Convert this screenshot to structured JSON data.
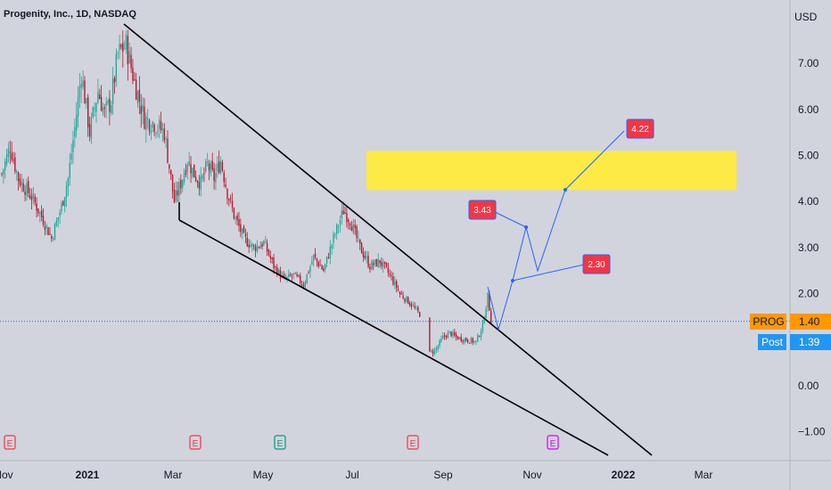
{
  "header": {
    "title": "Progenity, Inc., 1D, NASDAQ",
    "currency": "USD"
  },
  "colors": {
    "background": "#d1d4dc",
    "candle_up": "#26a69a",
    "candle_down": "#b5192e",
    "trendline": "#000000",
    "projection": "#2962ff",
    "zone": "#ffeb3b",
    "label_red": "#f23645",
    "prog_tag": "#ff9800",
    "post_tag": "#2196f3",
    "earnings_red": "#f23645",
    "earnings_green": "#089981",
    "earnings_purple": "#d500f9"
  },
  "price_axis": {
    "ticks": [
      "7.00",
      "6.00",
      "5.00",
      "4.00",
      "3.00",
      "2.00",
      "1.00",
      "0.00",
      "−1.00"
    ]
  },
  "time_axis": {
    "labels": [
      {
        "text": "Nov",
        "bold": false
      },
      {
        "text": "2021",
        "bold": true
      },
      {
        "text": "Mar",
        "bold": false
      },
      {
        "text": "May",
        "bold": false
      },
      {
        "text": "Jul",
        "bold": false
      },
      {
        "text": "Sep",
        "bold": false
      },
      {
        "text": "Nov",
        "bold": false
      },
      {
        "text": "2022",
        "bold": true
      },
      {
        "text": "Mar",
        "bold": false
      }
    ]
  },
  "price_tags": [
    {
      "symbol": "PROG",
      "value": "1.40",
      "color": "#ff9800"
    },
    {
      "symbol": "Post",
      "value": "1.39",
      "color": "#2196f3"
    }
  ],
  "chart_data": {
    "type": "candlestick",
    "title": "Progenity, Inc., 1D, NASDAQ",
    "ylim": [
      -1.5,
      8.3
    ],
    "last_price": 1.4,
    "post_price": 1.39,
    "zone": {
      "low": 4.25,
      "high": 5.1
    },
    "projection_labels": [
      "3.43",
      "2.30",
      "4.22"
    ],
    "earnings_markers": [
      "E",
      "E",
      "E",
      "E",
      "E"
    ],
    "ohlc_path": [
      {
        "i": 0,
        "p": 4.6
      },
      {
        "i": 5,
        "p": 5.2
      },
      {
        "i": 10,
        "p": 4.5
      },
      {
        "i": 18,
        "p": 4.1
      },
      {
        "i": 25,
        "p": 3.6
      },
      {
        "i": 30,
        "p": 3.2
      },
      {
        "i": 36,
        "p": 3.9
      },
      {
        "i": 40,
        "p": 4.5
      },
      {
        "i": 44,
        "p": 5.6
      },
      {
        "i": 48,
        "p": 6.8
      },
      {
        "i": 53,
        "p": 5.5
      },
      {
        "i": 58,
        "p": 6.4
      },
      {
        "i": 62,
        "p": 5.9
      },
      {
        "i": 66,
        "p": 6.2
      },
      {
        "i": 70,
        "p": 7.2
      },
      {
        "i": 75,
        "p": 7.4
      },
      {
        "i": 80,
        "p": 6.6
      },
      {
        "i": 86,
        "p": 5.8
      },
      {
        "i": 92,
        "p": 5.7
      },
      {
        "i": 98,
        "p": 5.5
      },
      {
        "i": 104,
        "p": 4.0
      },
      {
        "i": 108,
        "p": 4.4
      },
      {
        "i": 112,
        "p": 4.9
      },
      {
        "i": 116,
        "p": 4.6
      },
      {
        "i": 120,
        "p": 4.4
      },
      {
        "i": 124,
        "p": 4.8
      },
      {
        "i": 128,
        "p": 4.5
      },
      {
        "i": 132,
        "p": 4.9
      },
      {
        "i": 136,
        "p": 4.2
      },
      {
        "i": 140,
        "p": 3.7
      },
      {
        "i": 146,
        "p": 3.2
      },
      {
        "i": 152,
        "p": 3.0
      },
      {
        "i": 158,
        "p": 3.1
      },
      {
        "i": 164,
        "p": 2.6
      },
      {
        "i": 170,
        "p": 2.3
      },
      {
        "i": 176,
        "p": 2.4
      },
      {
        "i": 182,
        "p": 2.2
      },
      {
        "i": 188,
        "p": 2.8
      },
      {
        "i": 194,
        "p": 2.5
      },
      {
        "i": 200,
        "p": 3.2
      },
      {
        "i": 206,
        "p": 3.8
      },
      {
        "i": 210,
        "p": 3.6
      },
      {
        "i": 216,
        "p": 3.0
      },
      {
        "i": 222,
        "p": 2.6
      },
      {
        "i": 228,
        "p": 2.7
      },
      {
        "i": 234,
        "p": 2.4
      },
      {
        "i": 240,
        "p": 2.0
      },
      {
        "i": 246,
        "p": 1.8
      },
      {
        "i": 252,
        "p": 1.55
      },
      {
        "i": 258,
        "p": 0.7
      },
      {
        "i": 262,
        "p": 0.8
      },
      {
        "i": 266,
        "p": 1.05
      },
      {
        "i": 270,
        "p": 1.15
      },
      {
        "i": 274,
        "p": 1.05
      },
      {
        "i": 280,
        "p": 1.0
      },
      {
        "i": 286,
        "p": 0.95
      },
      {
        "i": 290,
        "p": 1.3
      },
      {
        "i": 293,
        "p": 1.95
      },
      {
        "i": 295,
        "p": 1.4
      }
    ]
  }
}
